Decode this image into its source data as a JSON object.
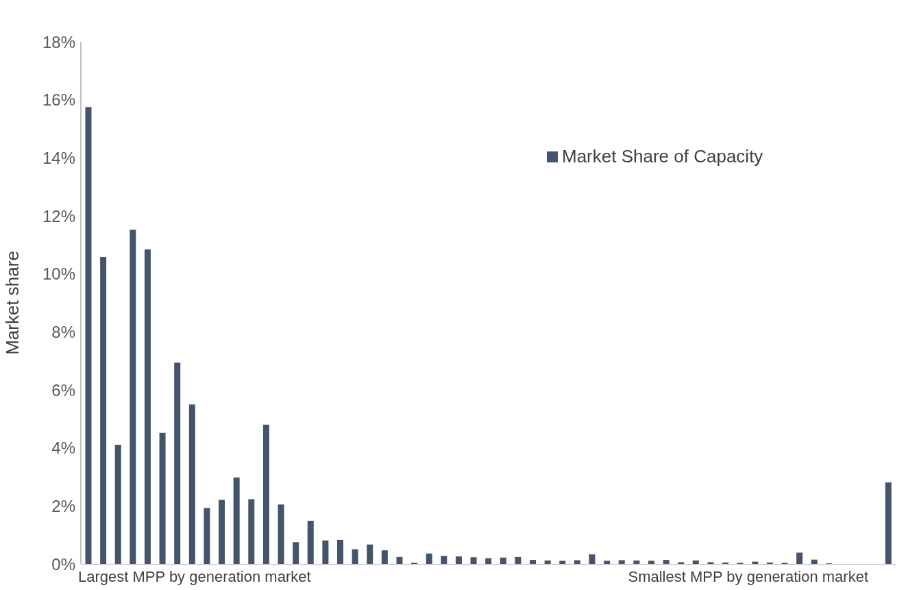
{
  "chart_data": {
    "type": "bar",
    "ylabel": "Market share",
    "categories": [
      null,
      null,
      null,
      null,
      null,
      null,
      null,
      null,
      null,
      null,
      null,
      null,
      null,
      null,
      null,
      null,
      null,
      null,
      null,
      null,
      null,
      null,
      null,
      null,
      null,
      null,
      null,
      null,
      null,
      null,
      null,
      null,
      null,
      null,
      null,
      null,
      null,
      null,
      null,
      null,
      null,
      null,
      null,
      null,
      null,
      null,
      null,
      null,
      null,
      null,
      null,
      null,
      null,
      null,
      null
    ],
    "series": [
      {
        "name": "Market Share of Capacity",
        "color": "#44546a",
        "values": [
          15.75,
          10.58,
          4.11,
          11.52,
          10.84,
          4.52,
          6.94,
          5.5,
          1.93,
          2.21,
          2.98,
          2.23,
          4.8,
          2.05,
          0.75,
          1.49,
          0.81,
          0.83,
          0.51,
          0.67,
          0.47,
          0.24,
          0.04,
          0.36,
          0.28,
          0.26,
          0.23,
          0.2,
          0.22,
          0.24,
          0.14,
          0.12,
          0.11,
          0.13,
          0.33,
          0.11,
          0.13,
          0.12,
          0.11,
          0.14,
          0.06,
          0.12,
          0.06,
          0.05,
          0.04,
          0.08,
          0.05,
          0.04,
          0.39,
          0.15,
          0.02,
          0,
          0,
          0,
          2.81
        ]
      }
    ],
    "ylim": [
      0,
      18
    ],
    "yticks": [
      {
        "value": 0,
        "label": "0%"
      },
      {
        "value": 2,
        "label": "2%"
      },
      {
        "value": 4,
        "label": "4%"
      },
      {
        "value": 6,
        "label": "6%"
      },
      {
        "value": 8,
        "label": "8%"
      },
      {
        "value": 10,
        "label": "10%"
      },
      {
        "value": 12,
        "label": "12%"
      },
      {
        "value": 14,
        "label": "14%"
      },
      {
        "value": 16,
        "label": "16%"
      },
      {
        "value": 18,
        "label": "18%"
      }
    ],
    "legend": "top right",
    "annotations": [
      "Largest MPP by generation market",
      "Smallest MPP by generation market"
    ]
  }
}
